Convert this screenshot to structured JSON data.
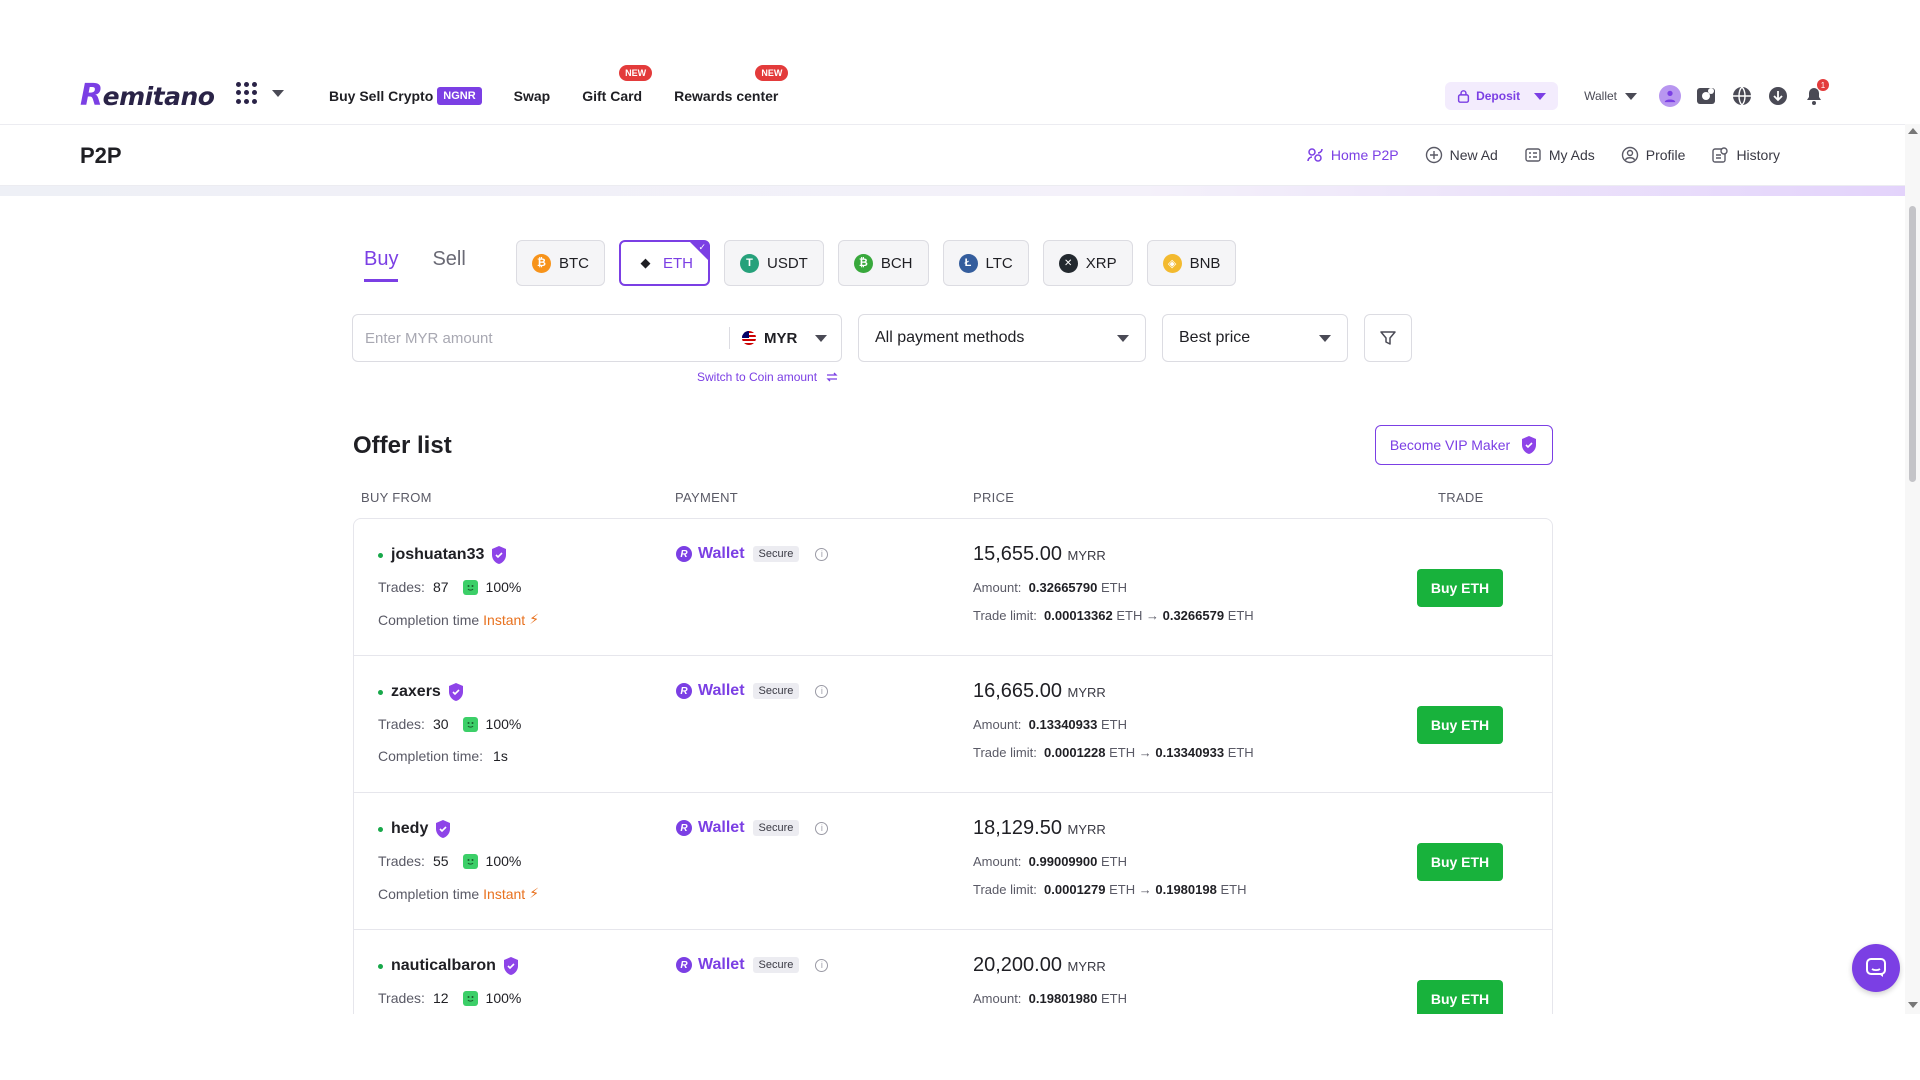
{
  "brand": {
    "logo_text": "emitano",
    "logo_r": "R"
  },
  "nav": {
    "links": [
      {
        "label": "Buy Sell Crypto",
        "pill": "NGNR"
      },
      {
        "label": "Swap"
      },
      {
        "label": "Gift Card",
        "badge": "NEW"
      },
      {
        "label": "Rewards center",
        "badge": "NEW"
      }
    ],
    "deposit_label": "Deposit",
    "wallet_label": "Wallet",
    "notification_count": "1"
  },
  "p2p": {
    "title": "P2P",
    "menu": [
      {
        "label": "Home P2P",
        "icon": "people-icon",
        "active": true
      },
      {
        "label": "New Ad",
        "icon": "plus-circle-icon"
      },
      {
        "label": "My Ads",
        "icon": "ads-icon"
      },
      {
        "label": "Profile",
        "icon": "user-circle-icon"
      },
      {
        "label": "History",
        "icon": "history-icon"
      }
    ]
  },
  "tabs": {
    "buy": "Buy",
    "sell": "Sell",
    "active": "buy"
  },
  "coins": [
    {
      "label": "BTC",
      "color": "#f7931a",
      "glyph": "₿"
    },
    {
      "label": "ETH",
      "color": "#1f1f24",
      "glyph": "◆",
      "active": true
    },
    {
      "label": "USDT",
      "color": "#26a17b",
      "glyph": "T"
    },
    {
      "label": "BCH",
      "color": "#38a83c",
      "glyph": "₿"
    },
    {
      "label": "LTC",
      "color": "#345d9d",
      "glyph": "Ł"
    },
    {
      "label": "XRP",
      "color": "#23292f",
      "glyph": "✕"
    },
    {
      "label": "BNB",
      "color": "#f3ba2f",
      "glyph": "◈"
    }
  ],
  "filters": {
    "amount_placeholder": "Enter MYR amount",
    "amount_value": "",
    "currency": "MYR",
    "payment_method": "All payment methods",
    "sort": "Best price",
    "switch_link": "Switch to Coin amount"
  },
  "offers": {
    "title": "Offer list",
    "vip_button": "Become VIP Maker",
    "columns": {
      "buy_from": "BUY FROM",
      "payment": "PAYMENT",
      "price": "PRICE",
      "trade": "TRADE"
    },
    "labels": {
      "trades": "Trades:",
      "completion": "Completion time",
      "amount": "Amount:",
      "trade_limit": "Trade limit:",
      "secure": "Secure",
      "arrow": "→"
    },
    "rows": [
      {
        "user": "joshuatan33",
        "trades": "87",
        "rate": "100%",
        "completion_label": "Completion time",
        "completion": "Instant",
        "instant": true,
        "payment": "Wallet",
        "price": "15,655.00",
        "price_unit": "MYRR",
        "amount": "0.32665790",
        "amount_unit": "ETH",
        "limit_min": "0.00013362",
        "limit_max": "0.3266579",
        "limit_unit": "ETH",
        "button": "Buy ETH"
      },
      {
        "user": "zaxers",
        "trades": "30",
        "rate": "100%",
        "completion_label": "Completion time:",
        "completion": "1s",
        "instant": false,
        "payment": "Wallet",
        "price": "16,665.00",
        "price_unit": "MYRR",
        "amount": "0.13340933",
        "amount_unit": "ETH",
        "limit_min": "0.0001228",
        "limit_max": "0.13340933",
        "limit_unit": "ETH",
        "button": "Buy ETH"
      },
      {
        "user": "hedy",
        "trades": "55",
        "rate": "100%",
        "completion_label": "Completion time",
        "completion": "Instant",
        "instant": true,
        "payment": "Wallet",
        "price": "18,129.50",
        "price_unit": "MYRR",
        "amount": "0.99009900",
        "amount_unit": "ETH",
        "limit_min": "0.0001279",
        "limit_max": "0.1980198",
        "limit_unit": "ETH",
        "button": "Buy ETH"
      },
      {
        "user": "nauticalbaron",
        "trades": "12",
        "rate": "100%",
        "completion_label": "",
        "completion": "",
        "instant": false,
        "payment": "Wallet",
        "price": "20,200.00",
        "price_unit": "MYRR",
        "amount": "0.19801980",
        "amount_unit": "ETH",
        "limit_min": "",
        "limit_max": "",
        "limit_unit": "",
        "button": "Buy ETH"
      }
    ]
  },
  "colors": {
    "accent": "#7b3fe4",
    "buy_green": "#18b23c",
    "instant_orange": "#e8711e"
  }
}
